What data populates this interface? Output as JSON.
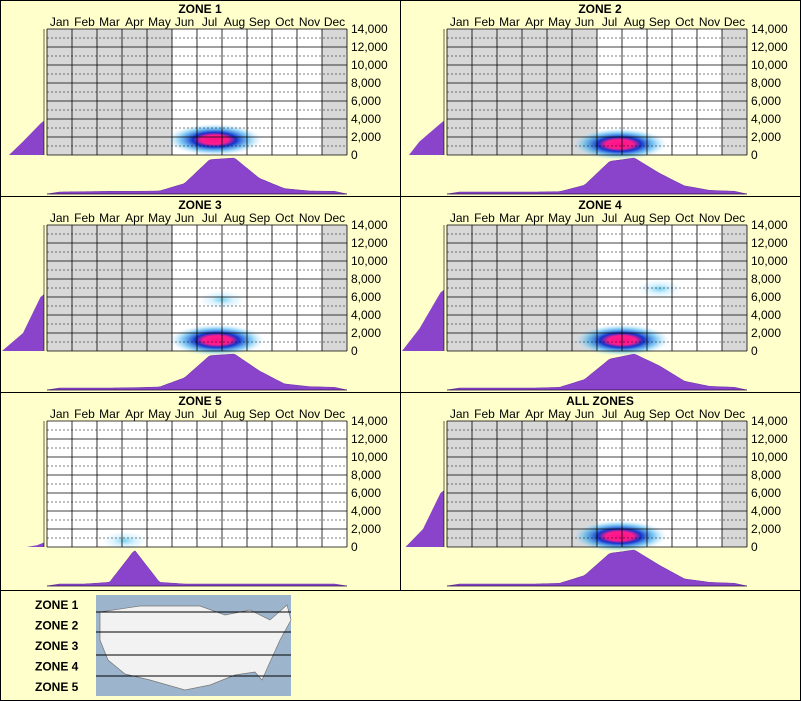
{
  "months": [
    "Jan",
    "Feb",
    "Mar",
    "Apr",
    "May",
    "Jun",
    "Jul",
    "Aug",
    "Sep",
    "Oct",
    "Nov",
    "Dec"
  ],
  "elev_ticks": [
    "14,000",
    "12,000",
    "10,000",
    "8,000",
    "6,000",
    "4,000",
    "2,000",
    "0"
  ],
  "legend": {
    "zones": [
      "ZONE 1",
      "ZONE 2",
      "ZONE 3",
      "ZONE 4",
      "ZONE 5"
    ]
  },
  "colors": {
    "background": "#ffffcc",
    "grid_fill": "#ffffff",
    "shaded": "#d8d8d8",
    "density": "#8a44cc",
    "heat_low": "#cceeff",
    "heat_mid": "#1133cc",
    "heat_high": "#ff1188"
  },
  "chart_data": [
    {
      "type": "heatmap",
      "title": "ZONE 1",
      "ylim": [
        0,
        14000
      ],
      "shaded_months": [
        "Jan",
        "Feb",
        "Mar",
        "Apr",
        "May",
        "Dec"
      ],
      "hotspots": [
        {
          "month": 7.2,
          "elevation": 1000,
          "intensity": 1.0
        }
      ],
      "month_distribution": [
        0,
        0.01,
        0.02,
        0.02,
        0.03,
        0.25,
        0.95,
        1.0,
        0.4,
        0.1,
        0.03,
        0.02
      ],
      "elevation_distribution": [
        {
          "elevation": 0,
          "value": 0.5
        },
        {
          "elevation": 1500,
          "value": 0.3
        },
        {
          "elevation": 3500,
          "value": 0.05
        }
      ]
    },
    {
      "type": "heatmap",
      "title": "ZONE 2",
      "ylim": [
        0,
        14000
      ],
      "shaded_months": [
        "Jan",
        "Feb",
        "Mar",
        "Apr",
        "May",
        "Jun",
        "Dec"
      ],
      "hotspots": [
        {
          "month": 7.4,
          "elevation": 500,
          "intensity": 1.0
        }
      ],
      "month_distribution": [
        0,
        0,
        0,
        0,
        0.01,
        0.2,
        0.9,
        1.0,
        0.55,
        0.18,
        0.05,
        0.02
      ],
      "elevation_distribution": [
        {
          "elevation": 0,
          "value": 0.5
        },
        {
          "elevation": 1500,
          "value": 0.35
        },
        {
          "elevation": 3500,
          "value": 0.05
        }
      ]
    },
    {
      "type": "heatmap",
      "title": "ZONE 3",
      "ylim": [
        0,
        14000
      ],
      "shaded_months": [
        "Jan",
        "Feb",
        "Mar",
        "Apr",
        "May",
        "Dec"
      ],
      "hotspots": [
        {
          "month": 7.3,
          "elevation": 500,
          "intensity": 1.0
        },
        {
          "month": 7.5,
          "elevation": 5000,
          "intensity": 0.1
        }
      ],
      "month_distribution": [
        0,
        0,
        0,
        0.01,
        0.03,
        0.3,
        0.95,
        1.0,
        0.5,
        0.12,
        0.04,
        0.02
      ],
      "elevation_distribution": [
        {
          "elevation": 0,
          "value": 0.6
        },
        {
          "elevation": 2000,
          "value": 0.3
        },
        {
          "elevation": 6000,
          "value": 0.05
        }
      ]
    },
    {
      "type": "heatmap",
      "title": "ZONE 4",
      "ylim": [
        0,
        14000
      ],
      "shaded_months": [
        "Jan",
        "Feb",
        "Mar",
        "Apr",
        "May",
        "Jun",
        "Dec"
      ],
      "hotspots": [
        {
          "month": 7.5,
          "elevation": 500,
          "intensity": 1.0
        },
        {
          "month": 9.0,
          "elevation": 6200,
          "intensity": 0.25
        }
      ],
      "month_distribution": [
        0,
        0,
        0,
        0,
        0.02,
        0.25,
        0.85,
        1.0,
        0.65,
        0.2,
        0.05,
        0.02
      ],
      "elevation_distribution": [
        {
          "elevation": 0,
          "value": 0.6
        },
        {
          "elevation": 2500,
          "value": 0.35
        },
        {
          "elevation": 6500,
          "value": 0.05
        }
      ]
    },
    {
      "type": "heatmap",
      "title": "ZONE 5",
      "ylim": [
        0,
        14000
      ],
      "shaded_months": [],
      "hotspots": [
        {
          "month": 3.6,
          "elevation": 0,
          "intensity": 0.3
        }
      ],
      "month_distribution": [
        0,
        0,
        0.05,
        1.0,
        0.05,
        0,
        0,
        0,
        0,
        0,
        0,
        0
      ],
      "elevation_distribution": [
        {
          "elevation": 0,
          "value": 0.25
        },
        {
          "elevation": 200,
          "value": 0.1
        }
      ]
    },
    {
      "type": "heatmap",
      "title": "ALL ZONES",
      "ylim": [
        0,
        14000
      ],
      "shaded_months": [
        "Jan",
        "Feb",
        "Mar",
        "Apr",
        "May",
        "Jun",
        "Dec"
      ],
      "hotspots": [
        {
          "month": 7.4,
          "elevation": 500,
          "intensity": 1.0
        }
      ],
      "month_distribution": [
        0,
        0,
        0,
        0,
        0.02,
        0.25,
        0.9,
        1.0,
        0.55,
        0.15,
        0.05,
        0.02
      ],
      "elevation_distribution": [
        {
          "elevation": 0,
          "value": 0.55
        },
        {
          "elevation": 2000,
          "value": 0.3
        },
        {
          "elevation": 6000,
          "value": 0.05
        }
      ]
    }
  ]
}
